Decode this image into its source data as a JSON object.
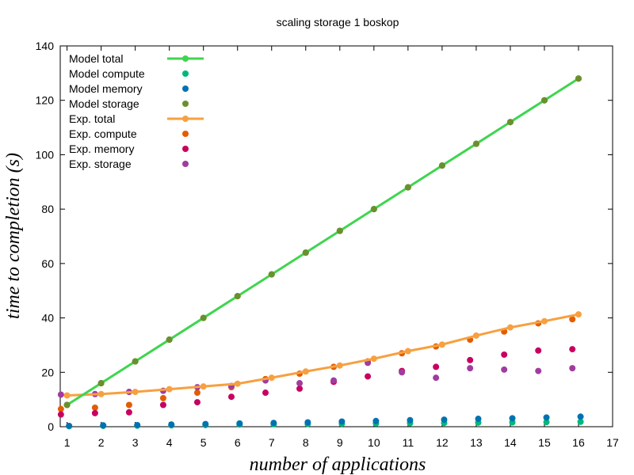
{
  "chart_data": {
    "type": "line",
    "title": "scaling storage 1 boskop",
    "xlabel": "number of applications",
    "ylabel": "time to completion (s)",
    "xlim": [
      0.8,
      17
    ],
    "ylim": [
      0,
      140
    ],
    "xticks": [
      "1",
      "2",
      "3",
      "4",
      "5",
      "6",
      "7",
      "8",
      "9",
      "10",
      "11",
      "12",
      "13",
      "14",
      "15",
      "16",
      "17"
    ],
    "yticks": [
      "0",
      "20",
      "40",
      "60",
      "80",
      "100",
      "120",
      "140"
    ],
    "grid": false,
    "legend_position": "top-left",
    "x": [
      1,
      2,
      3,
      4,
      5,
      6,
      7,
      8,
      9,
      10,
      11,
      12,
      13,
      14,
      15,
      16
    ],
    "series": [
      {
        "name": "Model total",
        "style": "line-points",
        "color": "#3fd54f",
        "offset": 0,
        "values": [
          8,
          16,
          24,
          32,
          40,
          48,
          56,
          64,
          72,
          80,
          88,
          96,
          104,
          112,
          120,
          128
        ]
      },
      {
        "name": "Model compute",
        "style": "points",
        "color": "#00b878",
        "offset": 0.06,
        "values": [
          0.2,
          0.3,
          0.4,
          0.5,
          0.6,
          0.8,
          0.9,
          1.0,
          1.1,
          1.2,
          1.3,
          1.4,
          1.5,
          1.6,
          1.7,
          1.8
        ]
      },
      {
        "name": "Model memory",
        "style": "points",
        "color": "#0072b2",
        "offset": 0.06,
        "values": [
          0.3,
          0.5,
          0.6,
          0.8,
          1.0,
          1.2,
          1.4,
          1.6,
          1.9,
          2.1,
          2.4,
          2.6,
          2.9,
          3.1,
          3.4,
          3.7
        ]
      },
      {
        "name": "Model storage",
        "style": "points",
        "color": "#6b8f2e",
        "offset": 0,
        "values": [
          8,
          16,
          24,
          32,
          40,
          48,
          56,
          64,
          72,
          80,
          88,
          96,
          104,
          112,
          120,
          128
        ]
      },
      {
        "name": "Exp. total",
        "style": "line-points",
        "color": "#f7a040",
        "offset": 0,
        "values": [
          11.5,
          12,
          12.8,
          13.8,
          14.8,
          15.8,
          18,
          20.3,
          22.5,
          25,
          27.8,
          30.2,
          33.5,
          36.5,
          38.8,
          41.3
        ]
      },
      {
        "name": "Exp. compute",
        "style": "points",
        "color": "#e35d00",
        "offset": -0.18,
        "values": [
          6.5,
          7,
          8,
          10.5,
          12.5,
          14.5,
          17.5,
          19.5,
          22,
          24,
          27,
          29.5,
          32,
          35,
          38,
          39.5
        ]
      },
      {
        "name": "Exp. memory",
        "style": "points",
        "color": "#c80060",
        "offset": -0.18,
        "values": [
          4.5,
          5,
          5.3,
          8,
          9,
          11,
          12.5,
          14,
          16.5,
          18.5,
          20.5,
          22,
          24.5,
          26.5,
          28,
          28.5
        ]
      },
      {
        "name": "Exp. storage",
        "style": "points",
        "color": "#a03ca0",
        "offset": -0.18,
        "values": [
          11.8,
          12,
          12.8,
          13.2,
          14.5,
          15,
          17,
          16,
          17,
          23.5,
          20,
          18,
          21.5,
          21,
          20.5,
          21.5
        ]
      }
    ]
  }
}
